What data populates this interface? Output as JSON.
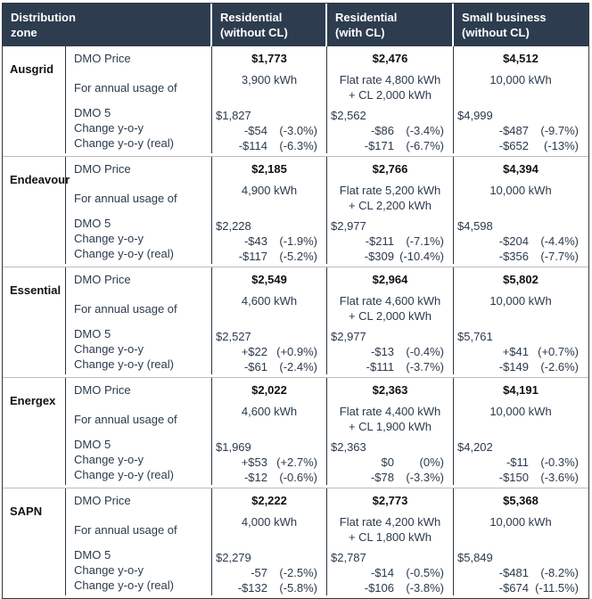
{
  "colors": {
    "header_bg": "#2d3c4e",
    "header_text": "#ffffff",
    "body_text": "#2b3a4c",
    "emphasis_text": "#101010",
    "group_divider": "#bcbcbc",
    "column_divider": "#2f3640"
  },
  "header": {
    "zone_line1": "Distribution",
    "zone_line2": "zone",
    "col1_line1": "Residential",
    "col1_line2": "(without CL)",
    "col2_line1": "Residential",
    "col2_line2": "(with CL)",
    "col3_line1": "Small business",
    "col3_line2": "(without CL)"
  },
  "row_labels": {
    "price": "DMO Price",
    "usage": "For annual usage of",
    "dmo5": "DMO 5",
    "change": "Change y-o-y",
    "change_real": "Change y-o-y (real)"
  },
  "zones": [
    {
      "name": "Ausgrid",
      "cols": [
        {
          "price": "$1,773",
          "usage1": "3,900 kWh",
          "usage2": "",
          "dmo5": "$1,827",
          "change_amt": "-$54",
          "change_pct": "(-3.0%)",
          "real_amt": "-$114",
          "real_pct": "(-6.3%)"
        },
        {
          "price": "$2,476",
          "usage1": "Flat rate 4,800 kWh",
          "usage2": "+ CL 2,000 kWh",
          "dmo5": "$2,562",
          "change_amt": "-$86",
          "change_pct": "(-3.4%)",
          "real_amt": "-$171",
          "real_pct": "(-6.7%)"
        },
        {
          "price": "$4,512",
          "usage1": "10,000 kWh",
          "usage2": "",
          "dmo5": "$4,999",
          "change_amt": "-$487",
          "change_pct": "(-9.7%)",
          "real_amt": "-$652",
          "real_pct": "(-13%)"
        }
      ]
    },
    {
      "name": "Endeavour",
      "cols": [
        {
          "price": "$2,185",
          "usage1": "4,900 kWh",
          "usage2": "",
          "dmo5": "$2,228",
          "change_amt": "-$43",
          "change_pct": "(-1.9%)",
          "real_amt": "-$117",
          "real_pct": "(-5.2%)"
        },
        {
          "price": "$2,766",
          "usage1": "Flat rate 5,200 kWh",
          "usage2": "+ CL 2,200 kWh",
          "dmo5": "$2,977",
          "change_amt": "-$211",
          "change_pct": "(-7.1%)",
          "real_amt": "-$309",
          "real_pct": "(-10.4%)"
        },
        {
          "price": "$4,394",
          "usage1": "10,000 kWh",
          "usage2": "",
          "dmo5": "$4,598",
          "change_amt": "-$204",
          "change_pct": "(-4.4%)",
          "real_amt": "-$356",
          "real_pct": "(-7.7%)"
        }
      ]
    },
    {
      "name": "Essential",
      "cols": [
        {
          "price": "$2,549",
          "usage1": "4,600 kWh",
          "usage2": "",
          "dmo5": "$2,527",
          "change_amt": "+$22",
          "change_pct": "(+0.9%)",
          "real_amt": "-$61",
          "real_pct": "(-2.4%)"
        },
        {
          "price": "$2,964",
          "usage1": "Flat rate 4,600 kWh",
          "usage2": "+ CL 2,000 kWh",
          "dmo5": "$2,977",
          "change_amt": "-$13",
          "change_pct": "(-0.4%)",
          "real_amt": "-$111",
          "real_pct": "(-3.7%)"
        },
        {
          "price": "$5,802",
          "usage1": "10,000 kWh",
          "usage2": "",
          "dmo5": "$5,761",
          "change_amt": "+$41",
          "change_pct": "(+0.7%)",
          "real_amt": "-$149",
          "real_pct": "(-2.6%)"
        }
      ]
    },
    {
      "name": "Energex",
      "cols": [
        {
          "price": "$2,022",
          "usage1": "4,600 kWh",
          "usage2": "",
          "dmo5": "$1,969",
          "change_amt": "+$53",
          "change_pct": "(+2.7%)",
          "real_amt": "-$12",
          "real_pct": "(-0.6%)"
        },
        {
          "price": "$2,363",
          "usage1": "Flat rate 4,400 kWh",
          "usage2": "+ CL 1,900 kWh",
          "dmo5": "$2,363",
          "change_amt": "$0",
          "change_pct": "(0%)",
          "real_amt": "-$78",
          "real_pct": "(-3.3%)"
        },
        {
          "price": "$4,191",
          "usage1": "10,000 kWh",
          "usage2": "",
          "dmo5": "$4,202",
          "change_amt": "-$11",
          "change_pct": "(-0.3%)",
          "real_amt": "-$150",
          "real_pct": "(-3.6%)"
        }
      ]
    },
    {
      "name": "SAPN",
      "cols": [
        {
          "price": "$2,222",
          "usage1": "4,000 kWh",
          "usage2": "",
          "dmo5": "$2,279",
          "change_amt": "-57",
          "change_pct": "(-2.5%)",
          "real_amt": "-$132",
          "real_pct": "(-5.8%)"
        },
        {
          "price": "$2,773",
          "usage1": "Flat rate 4,200 kWh",
          "usage2": "+ CL 1,800 kWh",
          "dmo5": "$2,787",
          "change_amt": "-$14",
          "change_pct": "(-0.5%)",
          "real_amt": "-$106",
          "real_pct": "(-3.8%)"
        },
        {
          "price": "$5,368",
          "usage1": "10,000 kWh",
          "usage2": "",
          "dmo5": "$5,849",
          "change_amt": "-$481",
          "change_pct": "(-8.2%)",
          "real_amt": "-$674",
          "real_pct": "(-11.5%)"
        }
      ]
    }
  ]
}
